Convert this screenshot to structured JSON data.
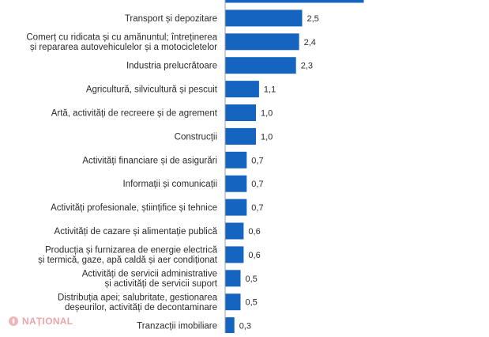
{
  "chart_data": {
    "type": "bar",
    "orientation": "horizontal",
    "bar_color": "#1565c0",
    "categories": [
      "",
      "Transport și depozitare",
      "Comerț cu ridicata și cu amănuntul; întreținerea\nși repararea autovehiculelor și a motocicletelor",
      "Industria prelucrătoare",
      "Agricultură, silvicultură și pescuit",
      "Artă, activități de recreere și de agrement",
      "Construcții",
      "Activități financiare și de asigurări",
      "Informații și comunicații",
      "Activități profesionale, științifice și tehnice",
      "Activități de cazare și alimentație publică",
      "Producția și furnizarea de energie electrică\nși termică, gaze, apă caldă și aer condiționat",
      "Activități de servicii administrative\nși activități de servicii suport",
      "Distribuția apei; salubritate, gestionarea\ndeșeurilor, activități de decontaminare",
      "Tranzacții imobiliare"
    ],
    "values": [
      4.5,
      2.5,
      2.4,
      2.3,
      1.1,
      1.0,
      1.0,
      0.7,
      0.7,
      0.7,
      0.6,
      0.6,
      0.5,
      0.5,
      0.3
    ],
    "value_labels": [
      "",
      "2,5",
      "2,4",
      "2,3",
      "1,1",
      "1,0",
      "1,0",
      "0,7",
      "0,7",
      "0,7",
      "0,6",
      "0,6",
      "0,5",
      "0,5",
      "0,3"
    ],
    "xlim": [
      0,
      4.8
    ],
    "grid": false,
    "legend": "none"
  },
  "watermark": {
    "text": "NAȚIONAL",
    "icon": "rose-logo-icon"
  }
}
